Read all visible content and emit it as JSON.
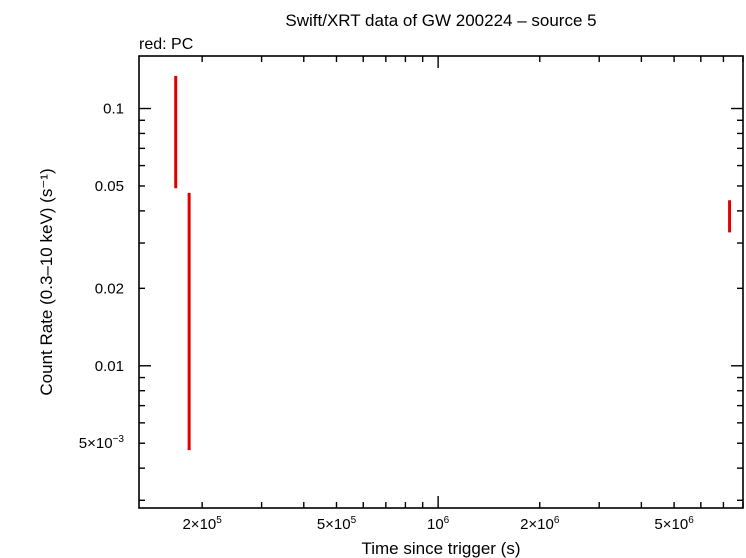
{
  "chart_data": {
    "type": "scatter",
    "title": "Swift/XRT data of GW 200224 – source 5",
    "subtitle": "red: PC",
    "xlabel": "Time since trigger (s)",
    "ylabel": "Count Rate (0.3–10 keV) (s⁻¹)",
    "x_scale": "log",
    "y_scale": "log",
    "xlim": [
      130000,
      8000000
    ],
    "ylim": [
      0.0028,
      0.16
    ],
    "x_ticks": [
      {
        "value": 200000,
        "mantissa": "2×10",
        "exp": "5"
      },
      {
        "value": 500000,
        "mantissa": "5×10",
        "exp": "5"
      },
      {
        "value": 1000000,
        "mantissa": "10",
        "exp": "6"
      },
      {
        "value": 2000000,
        "mantissa": "2×10",
        "exp": "6"
      },
      {
        "value": 5000000,
        "mantissa": "5×10",
        "exp": "6"
      }
    ],
    "y_ticks": [
      {
        "value": 0.1,
        "mantissa": "0.1",
        "exp": ""
      },
      {
        "value": 0.05,
        "mantissa": "0.05",
        "exp": ""
      },
      {
        "value": 0.02,
        "mantissa": "0.02",
        "exp": ""
      },
      {
        "value": 0.01,
        "mantissa": "0.01",
        "exp": ""
      },
      {
        "value": 0.005,
        "mantissa": "5×10",
        "exp": "−3"
      }
    ],
    "series": [
      {
        "color": "#e00000",
        "points": [
          {
            "x": 167000,
            "y_low": 0.049,
            "y_high": 0.134
          },
          {
            "x": 183000,
            "y_low": 0.0047,
            "y_high": 0.047
          },
          {
            "x": 7300000,
            "y_low": 0.033,
            "y_high": 0.044
          }
        ]
      }
    ]
  }
}
